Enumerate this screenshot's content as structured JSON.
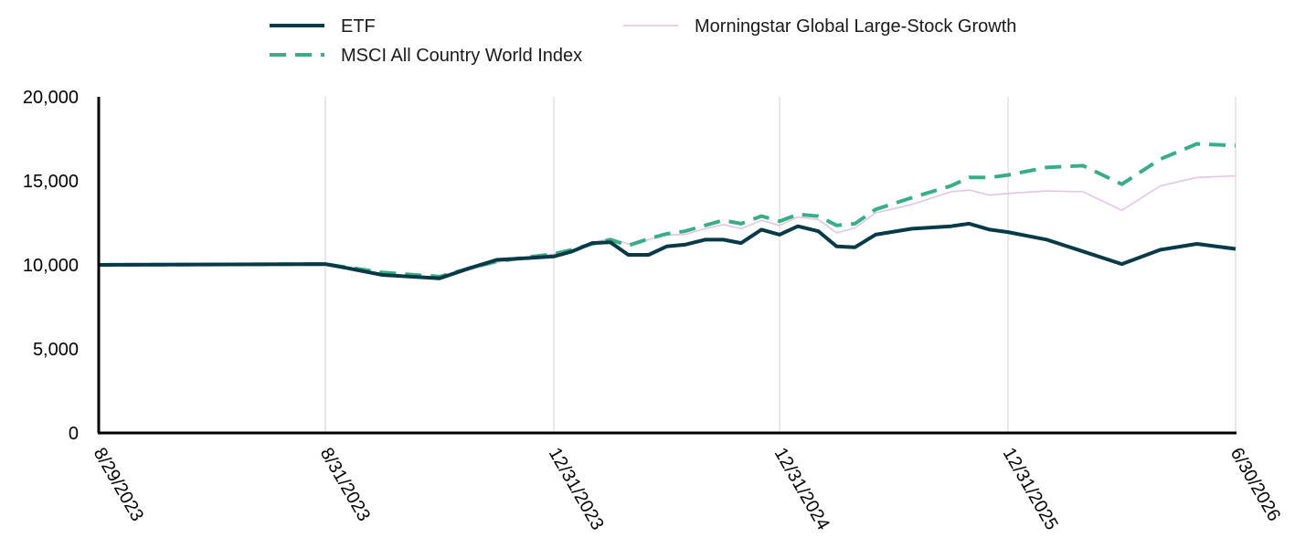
{
  "chart_data": {
    "type": "line",
    "title": "",
    "xlabel": "",
    "ylabel": "",
    "ylim": [
      0,
      20000
    ],
    "y_ticks": [
      "0",
      "5,000",
      "10,000",
      "15,000",
      "20,000"
    ],
    "x_ticks": [
      "8/29/2023",
      "8/31/2023",
      "12/31/2023",
      "12/31/2024",
      "12/31/2025",
      "6/30/2026"
    ],
    "grid": "vertical lines at x tick positions",
    "legend_position": "top",
    "colors": {
      "etf": "#063a46",
      "msci": "#3aad86",
      "morningstar": "#e0c6e2",
      "grid": "#d9d9d9",
      "axis": "#000000"
    },
    "series": [
      {
        "name": "ETF",
        "style": "solid-thick",
        "points": [
          [
            0.0,
            10000
          ],
          [
            1.0,
            10050
          ],
          [
            1.1,
            9800
          ],
          [
            1.25,
            9400
          ],
          [
            1.5,
            9200
          ],
          [
            1.63,
            9800
          ],
          [
            1.75,
            10300
          ],
          [
            1.88,
            10400
          ],
          [
            2.0,
            10500
          ],
          [
            2.08,
            10800
          ],
          [
            2.17,
            11300
          ],
          [
            2.25,
            11350
          ],
          [
            2.33,
            10600
          ],
          [
            2.42,
            10600
          ],
          [
            2.5,
            11100
          ],
          [
            2.58,
            11200
          ],
          [
            2.67,
            11500
          ],
          [
            2.75,
            11500
          ],
          [
            2.83,
            11300
          ],
          [
            2.92,
            12100
          ],
          [
            3.0,
            11800
          ],
          [
            3.08,
            12300
          ],
          [
            3.17,
            12000
          ],
          [
            3.25,
            11100
          ],
          [
            3.33,
            11050
          ],
          [
            3.42,
            11800
          ],
          [
            3.58,
            12150
          ],
          [
            3.75,
            12300
          ],
          [
            3.83,
            12450
          ],
          [
            3.92,
            12100
          ],
          [
            4.0,
            11950
          ],
          [
            4.17,
            11500
          ],
          [
            4.33,
            10800
          ],
          [
            4.5,
            10050
          ],
          [
            4.67,
            10900
          ],
          [
            4.83,
            11250
          ],
          [
            5.0,
            10950
          ]
        ]
      },
      {
        "name": "MSCI All Country World Index",
        "style": "dashed-thick",
        "points": [
          [
            0.0,
            10000
          ],
          [
            1.0,
            10050
          ],
          [
            1.1,
            9850
          ],
          [
            1.25,
            9550
          ],
          [
            1.5,
            9300
          ],
          [
            1.63,
            9800
          ],
          [
            1.75,
            10200
          ],
          [
            1.88,
            10450
          ],
          [
            2.0,
            10650
          ],
          [
            2.08,
            10900
          ],
          [
            2.17,
            11250
          ],
          [
            2.25,
            11500
          ],
          [
            2.33,
            11150
          ],
          [
            2.42,
            11550
          ],
          [
            2.5,
            11850
          ],
          [
            2.58,
            12000
          ],
          [
            2.67,
            12350
          ],
          [
            2.75,
            12650
          ],
          [
            2.83,
            12450
          ],
          [
            2.92,
            12900
          ],
          [
            3.0,
            12600
          ],
          [
            3.08,
            13000
          ],
          [
            3.17,
            12900
          ],
          [
            3.25,
            12350
          ],
          [
            3.33,
            12450
          ],
          [
            3.42,
            13300
          ],
          [
            3.58,
            14000
          ],
          [
            3.75,
            14700
          ],
          [
            3.83,
            15200
          ],
          [
            3.92,
            15200
          ],
          [
            4.0,
            15350
          ],
          [
            4.17,
            15800
          ],
          [
            4.33,
            15900
          ],
          [
            4.5,
            14800
          ],
          [
            4.67,
            16300
          ],
          [
            4.83,
            17200
          ],
          [
            5.0,
            17100
          ]
        ]
      },
      {
        "name": "Morningstar Global Large-Stock Growth",
        "style": "solid-thin",
        "points": [
          [
            0.0,
            10000
          ],
          [
            1.0,
            10050
          ],
          [
            1.1,
            9800
          ],
          [
            1.25,
            9450
          ],
          [
            1.5,
            9150
          ],
          [
            1.63,
            9700
          ],
          [
            1.75,
            10150
          ],
          [
            1.88,
            10450
          ],
          [
            2.0,
            10650
          ],
          [
            2.08,
            10850
          ],
          [
            2.17,
            11300
          ],
          [
            2.25,
            11600
          ],
          [
            2.33,
            11250
          ],
          [
            2.42,
            11500
          ],
          [
            2.5,
            11800
          ],
          [
            2.58,
            11800
          ],
          [
            2.67,
            12150
          ],
          [
            2.75,
            12400
          ],
          [
            2.83,
            12150
          ],
          [
            2.92,
            12650
          ],
          [
            3.0,
            12350
          ],
          [
            3.08,
            12850
          ],
          [
            3.17,
            12700
          ],
          [
            3.25,
            11900
          ],
          [
            3.33,
            12200
          ],
          [
            3.42,
            13100
          ],
          [
            3.58,
            13600
          ],
          [
            3.75,
            14350
          ],
          [
            3.83,
            14450
          ],
          [
            3.92,
            14150
          ],
          [
            4.0,
            14250
          ],
          [
            4.17,
            14400
          ],
          [
            4.33,
            14350
          ],
          [
            4.5,
            13250
          ],
          [
            4.67,
            14700
          ],
          [
            4.83,
            15200
          ],
          [
            5.0,
            15300
          ]
        ]
      }
    ]
  }
}
